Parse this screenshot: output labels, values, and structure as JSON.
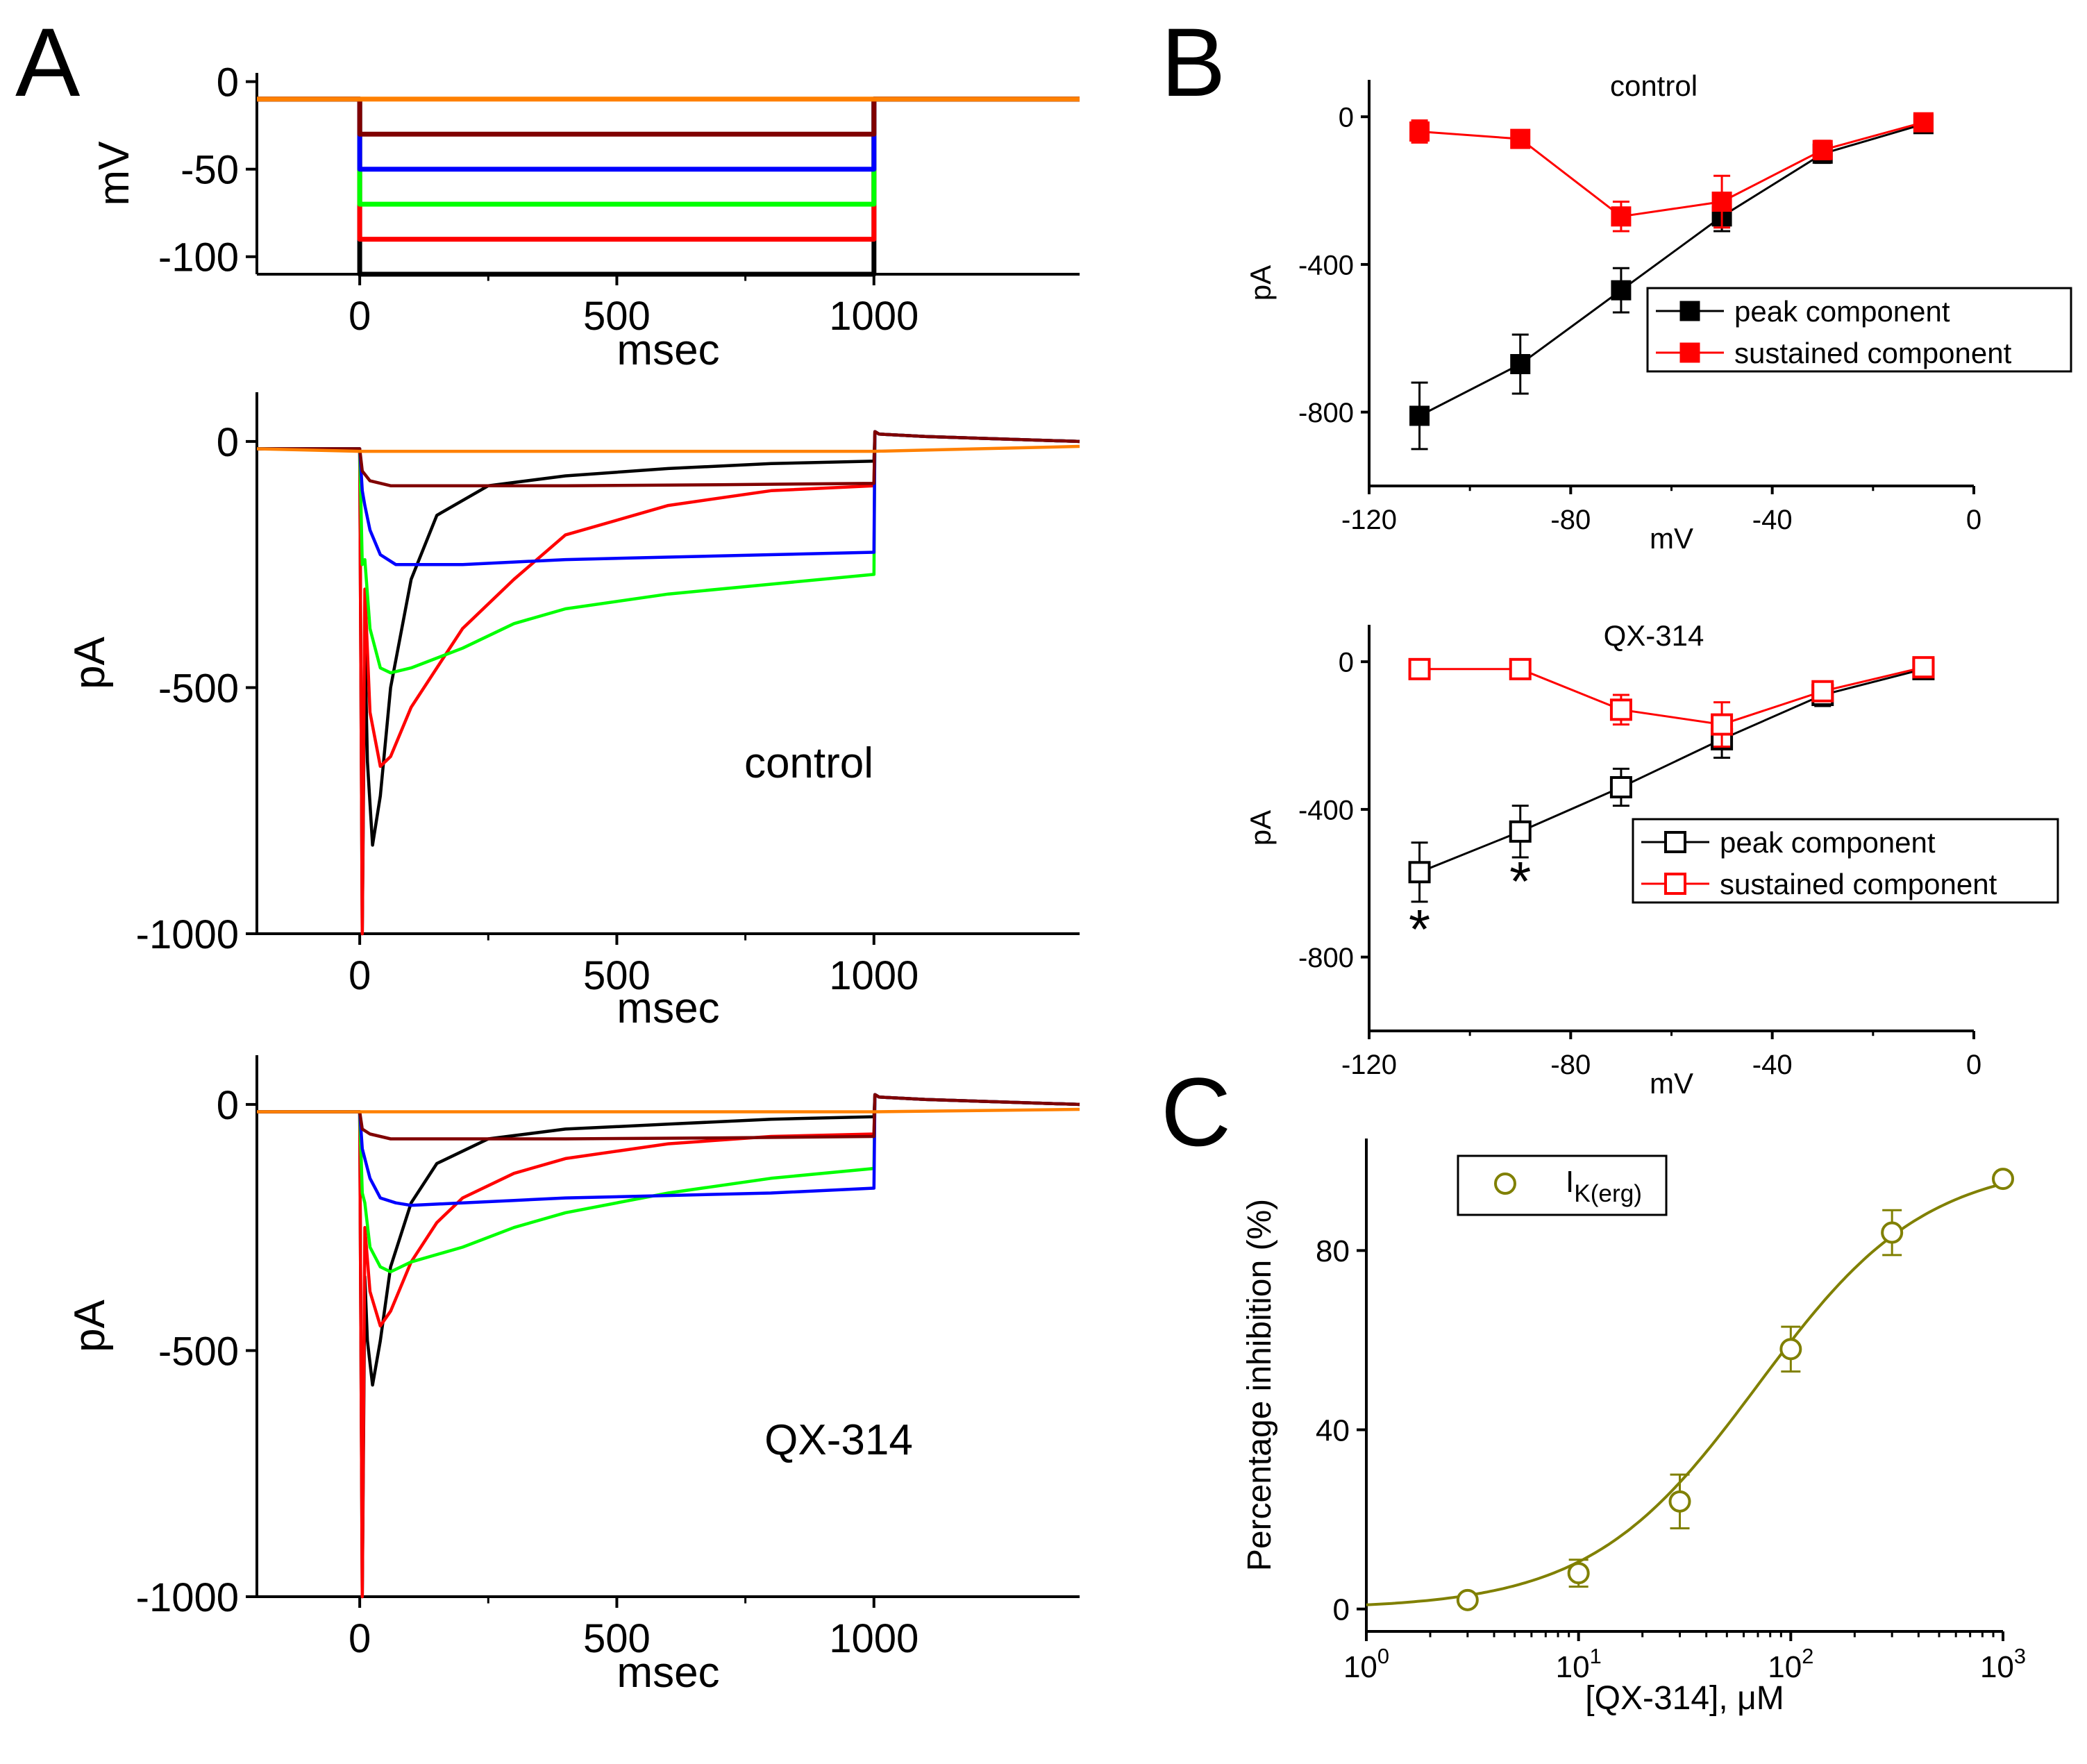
{
  "panel_labels": {
    "a": "A",
    "b": "B",
    "c": "C"
  },
  "chart_data": [
    {
      "id": "protocol",
      "type": "line",
      "panel": "A",
      "title": "",
      "xlabel": "msec",
      "ylabel": "mV",
      "xlim": [
        -200,
        1400
      ],
      "ylim": [
        -110,
        5
      ],
      "xticks": [
        0,
        500,
        1000
      ],
      "yticks": [
        0,
        -50,
        -100
      ],
      "series": [
        {
          "name": "-110 mV",
          "color": "#000000",
          "x": [
            -200,
            0,
            0,
            1000,
            1000,
            1400
          ],
          "y": [
            -10,
            -10,
            -110,
            -110,
            -10,
            -10
          ]
        },
        {
          "name": "-90 mV",
          "color": "#ff0000",
          "x": [
            -200,
            0,
            0,
            1000,
            1000,
            1400
          ],
          "y": [
            -10,
            -10,
            -90,
            -90,
            -10,
            -10
          ]
        },
        {
          "name": "-70 mV",
          "color": "#00ff00",
          "x": [
            -200,
            0,
            0,
            1000,
            1000,
            1400
          ],
          "y": [
            -10,
            -10,
            -70,
            -70,
            -10,
            -10
          ]
        },
        {
          "name": "-50 mV",
          "color": "#0000ff",
          "x": [
            -200,
            0,
            0,
            1000,
            1000,
            1400
          ],
          "y": [
            -10,
            -10,
            -50,
            -50,
            -10,
            -10
          ]
        },
        {
          "name": "-30 mV",
          "color": "#800000",
          "x": [
            -200,
            0,
            0,
            1000,
            1000,
            1400
          ],
          "y": [
            -10,
            -10,
            -30,
            -30,
            -10,
            -10
          ]
        },
        {
          "name": "-10 mV",
          "color": "#ff8000",
          "x": [
            -200,
            1400
          ],
          "y": [
            -10,
            -10
          ]
        }
      ]
    },
    {
      "id": "traces_control",
      "type": "line",
      "panel": "A",
      "title": "",
      "annotation": "control",
      "xlabel": "msec",
      "ylabel": "pA",
      "xlim": [
        -200,
        1400
      ],
      "ylim": [
        -1000,
        100
      ],
      "xticks": [
        0,
        500,
        1000
      ],
      "yticks": [
        0,
        -500,
        -1000
      ],
      "series": [
        {
          "name": "-110 mV",
          "color": "#000000",
          "x": [
            -200,
            0,
            5,
            10,
            15,
            25,
            40,
            60,
            100,
            150,
            250,
            400,
            600,
            800,
            1000,
            1002,
            1010,
            1100,
            1400
          ],
          "y": [
            -15,
            -15,
            -1000,
            -400,
            -650,
            -820,
            -720,
            -500,
            -280,
            -150,
            -90,
            -70,
            -55,
            -45,
            -40,
            20,
            15,
            10,
            0
          ]
        },
        {
          "name": "-90 mV",
          "color": "#ff0000",
          "x": [
            -200,
            0,
            5,
            10,
            20,
            40,
            60,
            100,
            200,
            300,
            400,
            600,
            800,
            1000,
            1002,
            1010,
            1100,
            1400
          ],
          "y": [
            -15,
            -15,
            -1000,
            -300,
            -550,
            -660,
            -640,
            -540,
            -380,
            -280,
            -190,
            -130,
            -100,
            -90,
            20,
            15,
            10,
            0
          ]
        },
        {
          "name": "-70 mV",
          "color": "#00ff00",
          "x": [
            -200,
            0,
            5,
            10,
            20,
            40,
            60,
            100,
            200,
            300,
            400,
            600,
            800,
            1000,
            1002,
            1010,
            1100,
            1400
          ],
          "y": [
            -15,
            -15,
            -250,
            -240,
            -380,
            -460,
            -470,
            -460,
            -420,
            -370,
            -340,
            -310,
            -290,
            -270,
            20,
            15,
            10,
            0
          ]
        },
        {
          "name": "-50 mV",
          "color": "#0000ff",
          "x": [
            -200,
            0,
            5,
            10,
            20,
            40,
            70,
            100,
            200,
            300,
            400,
            600,
            800,
            1000,
            1002,
            1010,
            1100,
            1400
          ],
          "y": [
            -15,
            -15,
            -100,
            -130,
            -180,
            -230,
            -250,
            -250,
            -250,
            -245,
            -240,
            -235,
            -230,
            -225,
            20,
            15,
            10,
            0
          ]
        },
        {
          "name": "-30 mV",
          "color": "#800000",
          "x": [
            -200,
            0,
            5,
            20,
            60,
            150,
            400,
            700,
            1000,
            1002,
            1010,
            1100,
            1400
          ],
          "y": [
            -15,
            -15,
            -60,
            -80,
            -90,
            -90,
            -90,
            -88,
            -85,
            20,
            15,
            10,
            0
          ]
        },
        {
          "name": "-10 mV",
          "color": "#ff8000",
          "x": [
            -200,
            0,
            1000,
            1400
          ],
          "y": [
            -15,
            -20,
            -20,
            -10
          ]
        }
      ]
    },
    {
      "id": "traces_qx314",
      "type": "line",
      "panel": "A",
      "title": "",
      "annotation": "QX-314",
      "xlabel": "msec",
      "ylabel": "pA",
      "xlim": [
        -200,
        1400
      ],
      "ylim": [
        -1000,
        100
      ],
      "xticks": [
        0,
        500,
        1000
      ],
      "yticks": [
        0,
        -500,
        -1000
      ],
      "series": [
        {
          "name": "-110 mV",
          "color": "#000000",
          "x": [
            -200,
            0,
            5,
            10,
            15,
            25,
            40,
            60,
            100,
            150,
            250,
            400,
            600,
            800,
            1000,
            1002,
            1010,
            1100,
            1400
          ],
          "y": [
            -15,
            -15,
            -1000,
            -350,
            -480,
            -570,
            -480,
            -330,
            -200,
            -120,
            -70,
            -50,
            -40,
            -30,
            -25,
            20,
            15,
            10,
            0
          ]
        },
        {
          "name": "-90 mV",
          "color": "#ff0000",
          "x": [
            -200,
            0,
            5,
            10,
            20,
            40,
            60,
            100,
            150,
            200,
            300,
            400,
            600,
            800,
            1000,
            1002,
            1010,
            1100,
            1400
          ],
          "y": [
            -15,
            -15,
            -1000,
            -250,
            -380,
            -450,
            -420,
            -320,
            -240,
            -190,
            -140,
            -110,
            -80,
            -65,
            -60,
            20,
            15,
            10,
            0
          ]
        },
        {
          "name": "-70 mV",
          "color": "#00ff00",
          "x": [
            -200,
            0,
            5,
            10,
            20,
            40,
            60,
            100,
            200,
            300,
            400,
            600,
            800,
            1000,
            1002,
            1010,
            1100,
            1400
          ],
          "y": [
            -15,
            -15,
            -180,
            -200,
            -290,
            -330,
            -340,
            -320,
            -290,
            -250,
            -220,
            -180,
            -150,
            -130,
            20,
            15,
            10,
            0
          ]
        },
        {
          "name": "-50 mV",
          "color": "#0000ff",
          "x": [
            -200,
            0,
            5,
            10,
            20,
            40,
            70,
            100,
            200,
            300,
            400,
            600,
            800,
            1000,
            1002,
            1010,
            1100,
            1400
          ],
          "y": [
            -15,
            -15,
            -90,
            -110,
            -150,
            -190,
            -200,
            -205,
            -200,
            -195,
            -190,
            -185,
            -180,
            -170,
            20,
            15,
            10,
            0
          ]
        },
        {
          "name": "-30 mV",
          "color": "#800000",
          "x": [
            -200,
            0,
            5,
            20,
            60,
            150,
            400,
            700,
            1000,
            1002,
            1010,
            1100,
            1400
          ],
          "y": [
            -15,
            -15,
            -50,
            -60,
            -70,
            -70,
            -70,
            -68,
            -65,
            20,
            15,
            10,
            0
          ]
        },
        {
          "name": "-10 mV",
          "color": "#ff8000",
          "x": [
            -200,
            0,
            1000,
            1400
          ],
          "y": [
            -15,
            -15,
            -15,
            -10
          ]
        }
      ]
    },
    {
      "id": "iv_control",
      "type": "line",
      "panel": "B",
      "title": "control",
      "xlabel": "mV",
      "ylabel": "pA",
      "xlim": [
        -120,
        0
      ],
      "ylim": [
        -1000,
        100
      ],
      "xticks": [
        -120,
        -80,
        -40,
        0
      ],
      "yticks": [
        0,
        -400,
        -800
      ],
      "legend_position": "right",
      "series": [
        {
          "name": "peak component",
          "color": "#000000",
          "marker": "filled-square",
          "x": [
            -110,
            -90,
            -70,
            -50,
            -30,
            -10
          ],
          "y": [
            -810,
            -670,
            -470,
            -270,
            -100,
            -20
          ],
          "err": [
            90,
            80,
            60,
            40,
            25,
            15
          ]
        },
        {
          "name": "sustained component",
          "color": "#ff0000",
          "marker": "filled-square",
          "x": [
            -110,
            -90,
            -70,
            -50,
            -30,
            -10
          ],
          "y": [
            -40,
            -60,
            -270,
            -230,
            -90,
            -15
          ],
          "err": [
            30,
            20,
            40,
            70,
            25,
            15
          ]
        }
      ]
    },
    {
      "id": "iv_qx314",
      "type": "line",
      "panel": "B",
      "title": "QX-314",
      "xlabel": "mV",
      "ylabel": "pA",
      "xlim": [
        -120,
        0
      ],
      "ylim": [
        -1000,
        100
      ],
      "xticks": [
        -120,
        -80,
        -40,
        0
      ],
      "yticks": [
        0,
        -400,
        -800
      ],
      "legend_position": "right",
      "annotations": [
        "*",
        "*"
      ],
      "series": [
        {
          "name": "peak component",
          "color": "#000000",
          "marker": "open-square",
          "x": [
            -110,
            -90,
            -70,
            -50,
            -30,
            -10
          ],
          "y": [
            -570,
            -460,
            -340,
            -210,
            -90,
            -20
          ],
          "err": [
            80,
            70,
            50,
            50,
            30,
            15
          ]
        },
        {
          "name": "sustained component",
          "color": "#ff0000",
          "marker": "open-square",
          "x": [
            -110,
            -90,
            -70,
            -50,
            -30,
            -10
          ],
          "y": [
            -20,
            -20,
            -130,
            -170,
            -80,
            -15
          ],
          "err": [
            15,
            15,
            40,
            60,
            25,
            15
          ]
        }
      ]
    },
    {
      "id": "dose_response",
      "type": "scatter",
      "panel": "C",
      "title": "",
      "xlabel": "[QX-314], μM",
      "ylabel": "Percentage inhibition (%)",
      "xscale": "log",
      "xlim": [
        1,
        1000
      ],
      "ylim": [
        -5,
        105
      ],
      "xticks": [
        {
          "base": "10",
          "exp": "0"
        },
        {
          "base": "10",
          "exp": "1"
        },
        {
          "base": "10",
          "exp": "2"
        },
        {
          "base": "10",
          "exp": "3"
        }
      ],
      "yticks": [
        0,
        40,
        80
      ],
      "legend_position": "top-left",
      "legend": {
        "main": "I",
        "sub": "K(erg)"
      },
      "color": "#808000",
      "points": {
        "x": [
          3,
          10,
          30,
          100,
          300,
          1000
        ],
        "y": [
          2,
          8,
          24,
          58,
          84,
          96
        ],
        "err": [
          1,
          3,
          6,
          5,
          5,
          1
        ]
      },
      "fit": {
        "model": "hill",
        "IC50": 70,
        "n": 1.1,
        "max": 100
      }
    }
  ]
}
